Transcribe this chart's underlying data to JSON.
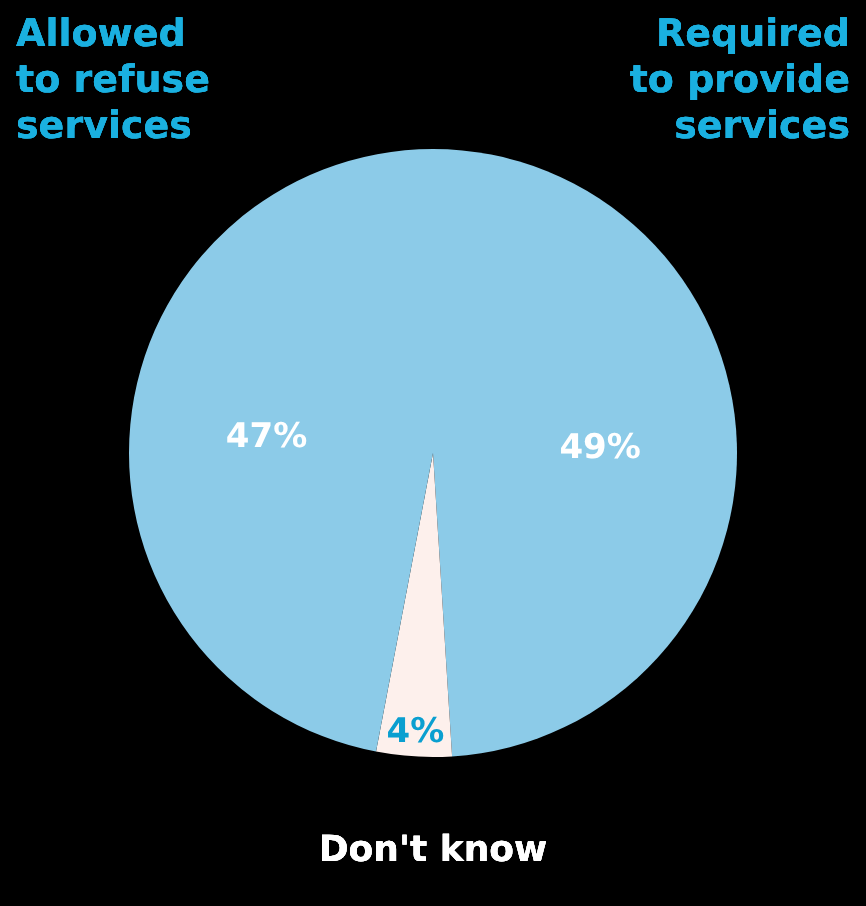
{
  "chart_data": {
    "type": "pie",
    "categories": [
      "Required to provide services",
      "Don't know",
      "Allowed to refuse services"
    ],
    "values": [
      49,
      4,
      47
    ],
    "colors": [
      "#8ccbe8",
      "#fdf0ec",
      "#8ccbe8"
    ],
    "value_labels": [
      "49%",
      "4%",
      "47%"
    ],
    "legend": false
  }
}
